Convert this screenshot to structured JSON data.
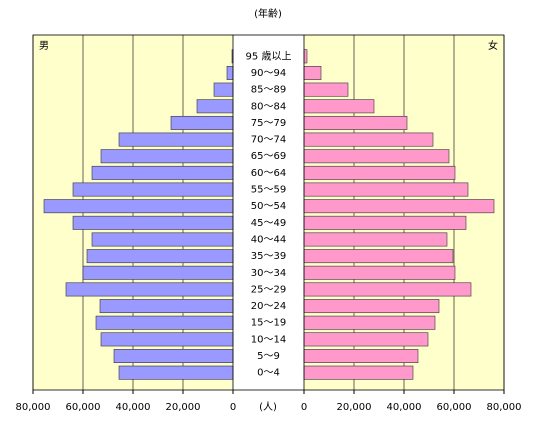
{
  "chart_data": {
    "type": "pyramid",
    "y_label": "(年齢)",
    "x_label": "(人)",
    "categories": [
      "0～4",
      "5～9",
      "10～14",
      "15～19",
      "20～24",
      "25～29",
      "30～34",
      "35～39",
      "40～44",
      "45～49",
      "50～54",
      "55～59",
      "60～64",
      "65～69",
      "70～74",
      "75～79",
      "80～84",
      "85～89",
      "90～94",
      "95 歳以上"
    ],
    "series": [
      {
        "name": "男",
        "color": "#9999ff",
        "values": [
          45600,
          47600,
          52800,
          54800,
          53200,
          66800,
          60000,
          58400,
          56400,
          64000,
          75600,
          64000,
          56400,
          52800,
          45600,
          24800,
          14400,
          7600,
          2400,
          400
        ]
      },
      {
        "name": "女",
        "color": "#ff99cc",
        "values": [
          43600,
          45600,
          49600,
          52400,
          54000,
          66800,
          60400,
          59600,
          57200,
          64800,
          76000,
          65600,
          60400,
          58000,
          51600,
          41200,
          28000,
          17600,
          6800,
          1200
        ]
      }
    ],
    "xlim": [
      0,
      80000
    ],
    "xticks": [
      0,
      {
        "value": 20000,
        "label": "20,000"
      },
      {
        "value": 40000,
        "label": "40,000"
      },
      {
        "value": 60000,
        "label": "60,000"
      },
      {
        "value": 80000,
        "label": "80,000"
      }
    ],
    "grid": true,
    "background": "#ffffcc"
  }
}
